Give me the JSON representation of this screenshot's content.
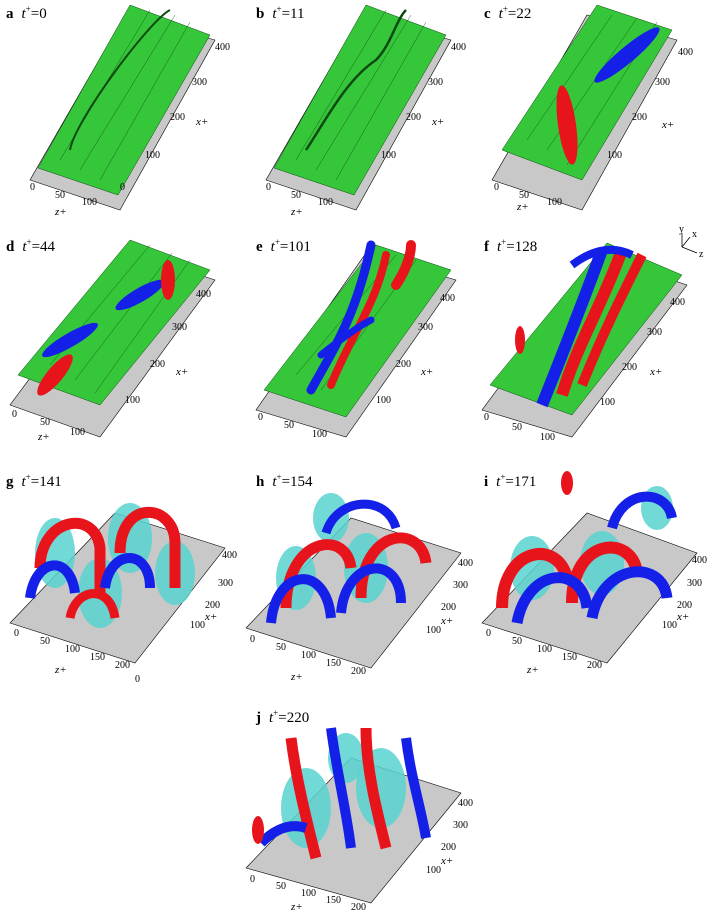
{
  "panels": [
    {
      "letter": "a",
      "tvar": "t",
      "sup": "+",
      "eq": "=0"
    },
    {
      "letter": "b",
      "tvar": "t",
      "sup": "+",
      "eq": "=11"
    },
    {
      "letter": "c",
      "tvar": "t",
      "sup": "+",
      "eq": "=22"
    },
    {
      "letter": "d",
      "tvar": "t",
      "sup": "+",
      "eq": "=44"
    },
    {
      "letter": "e",
      "tvar": "t",
      "sup": "+",
      "eq": "=101"
    },
    {
      "letter": "f",
      "tvar": "t",
      "sup": "+",
      "eq": "=128"
    },
    {
      "letter": "g",
      "tvar": "t",
      "sup": "+",
      "eq": "=141"
    },
    {
      "letter": "h",
      "tvar": "t",
      "sup": "+",
      "eq": "=154"
    },
    {
      "letter": "i",
      "tvar": "t",
      "sup": "+",
      "eq": "=171"
    },
    {
      "letter": "j",
      "tvar": "t",
      "sup": "+",
      "eq": "=220"
    }
  ],
  "axes": {
    "x_label": "x+",
    "z_label": "z+",
    "x_ticks": [
      "100",
      "200",
      "300",
      "400"
    ],
    "z_ticks_small": [
      "0",
      "50",
      "100"
    ],
    "z_ticks_large": [
      "0",
      "50",
      "100",
      "150",
      "200"
    ],
    "corner_zero": "0"
  },
  "orientation": {
    "y": "y",
    "x": "x",
    "z": "z"
  },
  "colors": {
    "surface": "#35c63a",
    "grid": "#0d4a10",
    "red": "#e8141c",
    "blue": "#1420e8",
    "cyan": "#58d4d0",
    "floor": "#c8c8c8"
  }
}
